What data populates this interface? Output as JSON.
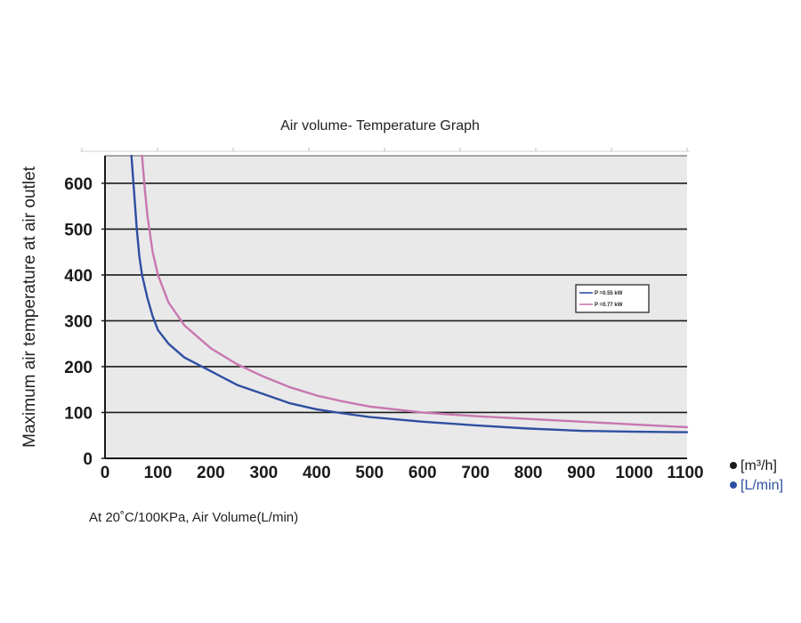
{
  "chart_data": {
    "type": "line",
    "title": "Air volume- Temperature Graph",
    "ylabel": "Maximum air temperature at air outlet",
    "xlabel": "At 20˚C/100KPa, Air Volume(L/min)",
    "xlim": [
      0,
      1100
    ],
    "ylim": [
      0,
      660
    ],
    "x_ticks": [
      0,
      100,
      200,
      300,
      400,
      500,
      600,
      700,
      800,
      900,
      1000,
      1100
    ],
    "y_ticks": [
      0,
      100,
      200,
      300,
      400,
      500,
      600
    ],
    "grid": true,
    "legend_position": "right",
    "plot_background": "#e9e9ea",
    "series": [
      {
        "name": "P =0.55 kW",
        "color": "#2e4fa0",
        "x": [
          50,
          55,
          60,
          65,
          70,
          80,
          90,
          100,
          120,
          150,
          200,
          250,
          300,
          350,
          400,
          450,
          500,
          600,
          700,
          800,
          900,
          1000,
          1100
        ],
        "y": [
          660,
          580,
          500,
          440,
          400,
          350,
          310,
          280,
          250,
          220,
          190,
          160,
          140,
          120,
          107,
          98,
          90,
          80,
          72,
          65,
          60,
          58,
          57
        ]
      },
      {
        "name": "P =0.77 kW",
        "color": "#c877b0",
        "x": [
          70,
          75,
          80,
          90,
          100,
          120,
          150,
          200,
          250,
          300,
          350,
          400,
          450,
          500,
          600,
          700,
          800,
          900,
          1000,
          1100
        ],
        "y": [
          660,
          590,
          530,
          450,
          400,
          340,
          290,
          240,
          205,
          178,
          155,
          137,
          124,
          113,
          100,
          92,
          86,
          80,
          74,
          68
        ]
      }
    ],
    "units": [
      {
        "label": "[m³/h]",
        "color": "#1a1a1a"
      },
      {
        "label": "[L/min]",
        "color": "#2e4fa0"
      }
    ]
  }
}
